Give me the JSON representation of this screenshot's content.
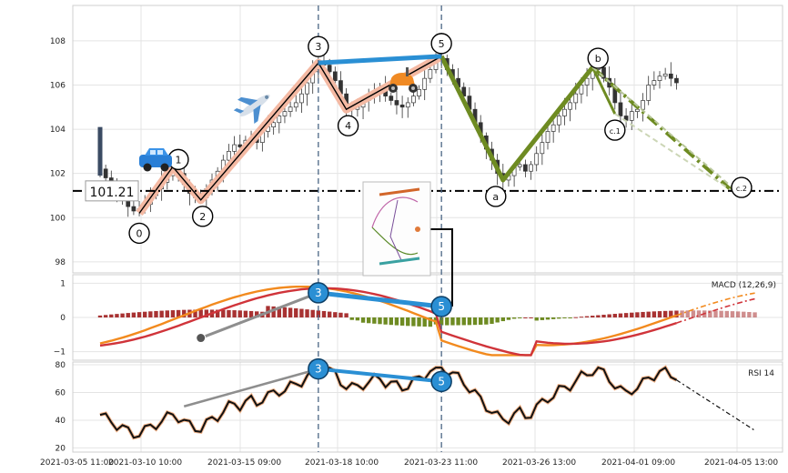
{
  "chart_data": [
    {
      "type": "candlestick",
      "panel": "price",
      "ylim": [
        97.5,
        109.6
      ],
      "y_ticks": [
        "98",
        "100",
        "102",
        "104",
        "106",
        "108"
      ],
      "x_tick_labels": [
        "2021-03-05 11:00",
        "2021-03-10 10:00",
        "2021-03-15 09:00",
        "2021-03-18 10:00",
        "2021-03-23 11:00",
        "2021-03-26 13:00",
        "2021-04-01 09:00",
        "2021-04-05 13:00"
      ],
      "grid": true,
      "close": [
        102.2,
        101.8,
        101.6,
        101.2,
        100.9,
        100.5,
        100.3,
        100.4,
        100.6,
        101.0,
        101.3,
        101.6,
        101.9,
        102.3,
        102.0,
        101.5,
        101.1,
        100.9,
        100.9,
        101.3,
        101.7,
        102.1,
        102.6,
        103.0,
        103.3,
        103.2,
        103.5,
        103.6,
        103.4,
        103.9,
        104.1,
        104.3,
        104.6,
        104.8,
        105.0,
        105.2,
        105.6,
        106.1,
        106.6,
        107.0,
        106.9,
        106.6,
        106.2,
        105.6,
        105.1,
        104.9,
        105.0,
        105.3,
        105.5,
        105.7,
        105.9,
        105.5,
        105.3,
        105.1,
        105.0,
        105.2,
        105.5,
        105.8,
        106.3,
        106.7,
        107.1,
        107.2,
        106.7,
        106.3,
        105.9,
        105.5,
        104.9,
        104.3,
        103.7,
        103.1,
        102.6,
        102.0,
        101.7,
        101.9,
        102.3,
        102.4,
        102.1,
        102.4,
        102.9,
        103.4,
        103.9,
        104.2,
        104.6,
        104.9,
        105.2,
        105.6,
        106.0,
        106.3,
        106.7,
        106.8,
        106.3,
        105.9,
        105.2,
        104.6,
        104.4,
        104.8,
        104.9,
        105.3,
        106.0,
        106.2,
        106.4,
        106.5,
        106.3,
        106.1
      ],
      "current_price_label": "101.21",
      "current_price": 101.21,
      "waves": [
        {
          "label": "0",
          "x": 7,
          "y": 100.2
        },
        {
          "label": "1",
          "x": 13,
          "y": 102.3
        },
        {
          "label": "2",
          "x": 18,
          "y": 100.8
        },
        {
          "label": "3",
          "x": 39,
          "y": 107.0
        },
        {
          "label": "4",
          "x": 44,
          "y": 104.9
        },
        {
          "label": "5",
          "x": 61,
          "y": 107.3
        },
        {
          "label": "a",
          "x": 72,
          "y": 101.7
        },
        {
          "label": "b",
          "x": 88,
          "y": 106.8
        },
        {
          "label": "c.1",
          "x": 92,
          "y": 104.7
        },
        {
          "label": "c.2",
          "x": 113,
          "y": 101.2
        }
      ],
      "vlines_at_index": [
        39,
        61
      ]
    },
    {
      "type": "line",
      "panel": "macd",
      "title": "MACD (12,26,9)",
      "ylim": [
        -1.25,
        1.25
      ],
      "y_ticks": [
        "1",
        "0",
        "−1"
      ],
      "grid": true,
      "divergence": {
        "from_index": 39,
        "to_index": 61,
        "labels": [
          "3",
          "5"
        ]
      }
    },
    {
      "type": "line",
      "panel": "rsi",
      "title": "RSI 14",
      "ylim": [
        17,
        82
      ],
      "y_ticks": [
        "80",
        "60",
        "40",
        "20"
      ],
      "grid": true,
      "divergence": {
        "from_index": 39,
        "to_index": 61,
        "labels": [
          "3",
          "5"
        ]
      }
    }
  ],
  "colors": {
    "impulse_wave": "#f4b9a3",
    "corrective_wave": "#6e8b22",
    "divergence": "#2a8fd4",
    "macd_line": "#f28a1e",
    "signal_line": "#d0343a",
    "hist_pos": "#a83232",
    "hist_neg": "#6e8b22",
    "rsi_line": "#111111"
  },
  "icons": [
    "car-icon",
    "airplane-icon",
    "scooter-icon",
    "chart-thumbnail-icon"
  ]
}
